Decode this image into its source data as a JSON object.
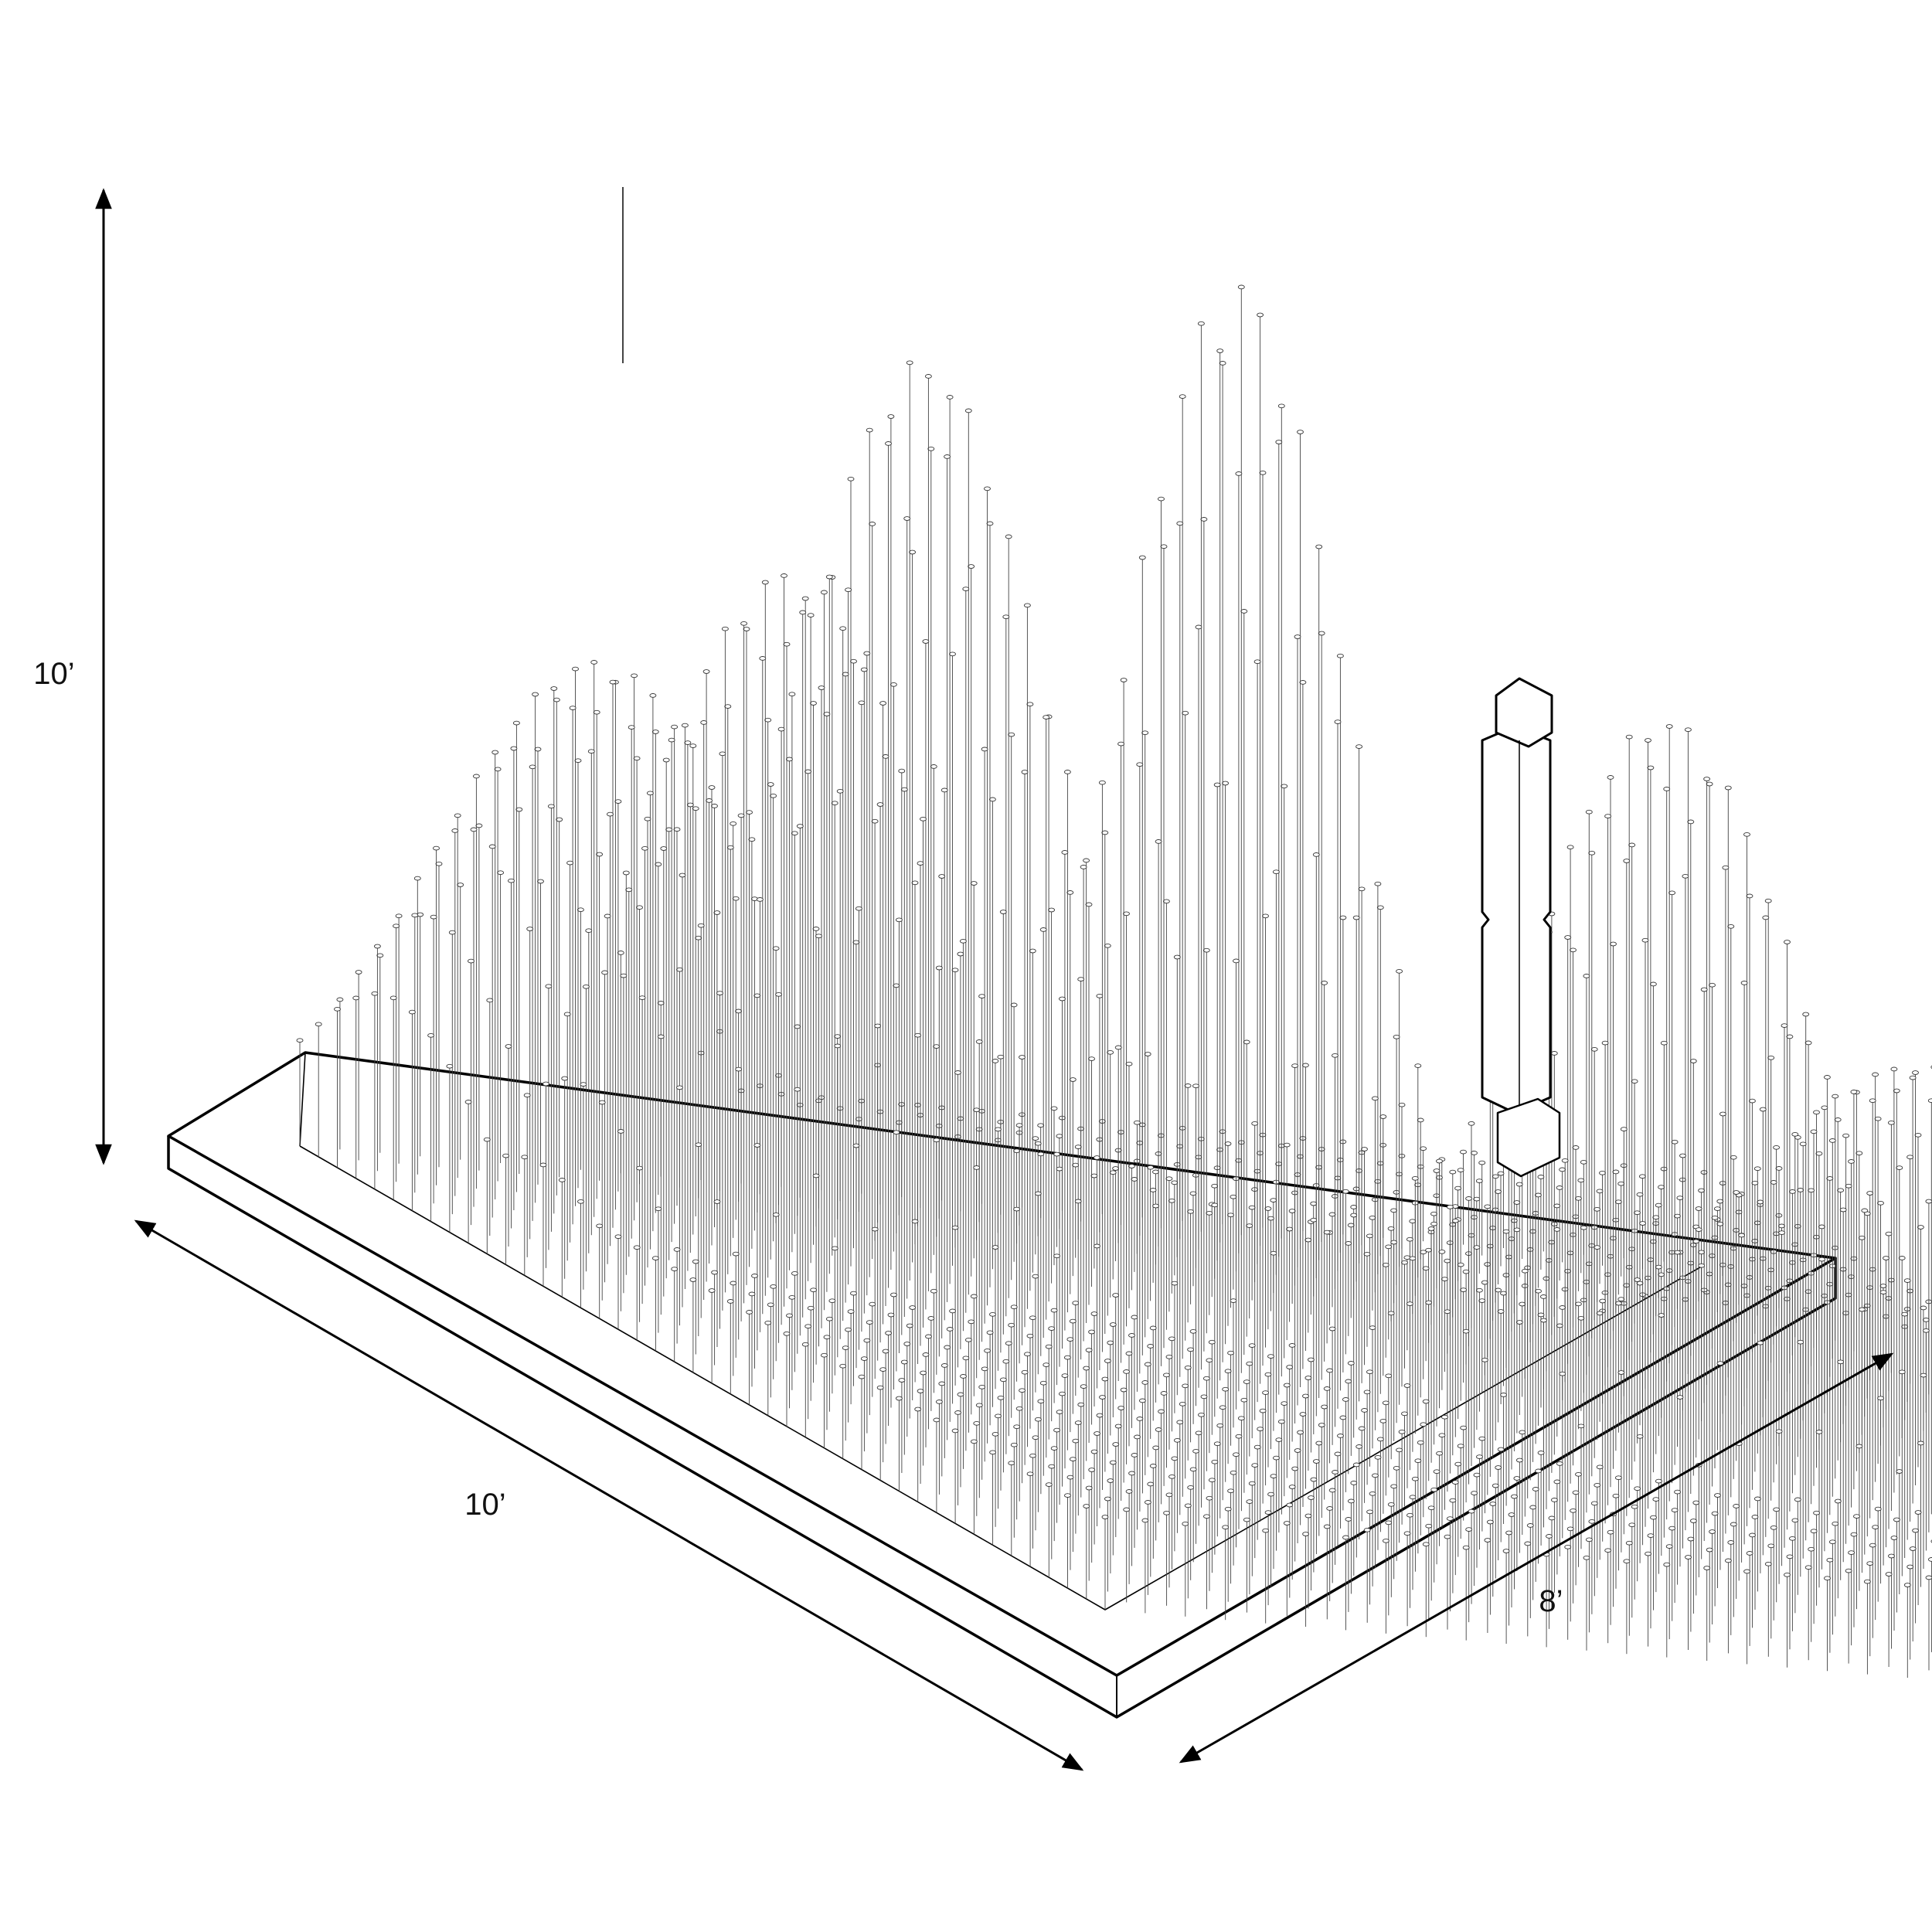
{
  "dimensions": {
    "height_label": "10’",
    "length_label": "10’",
    "width_label": "8’"
  },
  "colors": {
    "line": "#000000",
    "rod": "#444444",
    "background": "#ffffff"
  },
  "icons": {
    "height_arrow": "double-arrow-vertical",
    "length_arrow": "double-arrow-diagonal",
    "width_arrow": "double-arrow-diagonal"
  }
}
